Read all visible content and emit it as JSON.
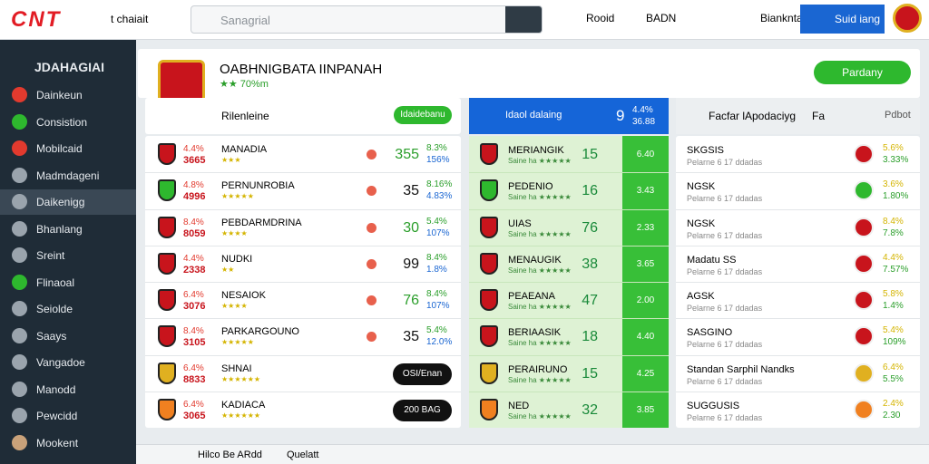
{
  "header": {
    "logo": "CNT",
    "account": "t chaiait",
    "search_placeholder": "Sanagrial",
    "link1": "Rooid",
    "link2": "BADN",
    "link3": "Bianknta",
    "button": "Suid iang"
  },
  "sidebar": {
    "title": "JDAHAGIAI",
    "selected": 4,
    "items": [
      "Dainkeun",
      "Consistion",
      "Mobilcaid",
      "Madmdageni",
      "Daikenigg",
      "Bhanlang",
      "Sreint",
      "Flinaoal",
      "Seiolde",
      "Saays",
      "Vangadoe",
      "Manodd",
      "Pewcidd",
      "Mookent"
    ]
  },
  "panel": {
    "title": "OABHNIGBATA IINPANAH",
    "rating": "★★ 70%m",
    "button": "Pardany",
    "sub_label": "Rilenleine",
    "sub_button": "Idaidebanu"
  },
  "list": {
    "rows": [
      [
        "4.4%",
        "3665",
        "MANADIA",
        "★★★",
        "355",
        "8.3%",
        "156%"
      ],
      [
        "4.8%",
        "4996",
        "PERNUNROBIA",
        "★★★★★",
        "35",
        "8.16%",
        "4.83%"
      ],
      [
        "8.4%",
        "8059",
        "PEBDARMDRINA",
        "★★★★",
        "30",
        "5.4%",
        "107%"
      ],
      [
        "4.4%",
        "2338",
        "NUDKI",
        "★★",
        "99",
        "8.4%",
        "1.8%"
      ],
      [
        "6.4%",
        "3076",
        "NESAIOK",
        "★★★★",
        "76",
        "8.4%",
        "107%"
      ],
      [
        "8.4%",
        "3105",
        "PARKARGOUNO",
        "★★★★★",
        "35",
        "5.4%",
        "12.0%"
      ],
      [
        "6.4%",
        "8833",
        "SHNAI",
        "★★★★★★",
        "OSI/Enan"
      ],
      [
        "6.4%",
        "3065",
        "KADIACA",
        "★★★★★★",
        "200 BAG"
      ]
    ]
  },
  "ranking": {
    "title": "Idaol dalaing",
    "number": "9",
    "stat1": "4.4%",
    "stat2": "36.88",
    "rows": [
      [
        "MERIANGIK",
        "Saine ha ★★★★★",
        "15",
        "6.40"
      ],
      [
        "PEDENIO",
        "Saine ha ★★★★★",
        "16",
        "3.43"
      ],
      [
        "UIAS",
        "Saine ha ★★★★★",
        "76",
        "2.33"
      ],
      [
        "MENAUGIK",
        "Saine ha ★★★★★",
        "38",
        "3.65"
      ],
      [
        "PEAEANA",
        "Saine ha ★★★★★",
        "47",
        "2.00"
      ],
      [
        "BERIAASIK",
        "Saine ha ★★★★★",
        "18",
        "4.40"
      ],
      [
        "PERAIRUNO",
        "Saine ha ★★★★★",
        "15",
        "4.25"
      ],
      [
        "NED",
        "Saine ha ★★★★★",
        "32",
        "3.85"
      ]
    ]
  },
  "factors": {
    "title": "Facfar lApodaciyg",
    "tag": "Fa",
    "action": "Pdbot",
    "rows": [
      [
        "SKGSIS",
        "Pelarne 6 17 ddadas",
        "5.6%",
        "3.33%"
      ],
      [
        "NGSK",
        "Pelarne 6 17 ddadas",
        "3.6%",
        "1.80%"
      ],
      [
        "NGSK",
        "Pelarne 6 17 ddadas",
        "8.4%",
        "7.8%"
      ],
      [
        "Madatu SS",
        "Pelarne 6 17 ddadas",
        "4.4%",
        "7.57%"
      ],
      [
        "AGSK",
        "Pelarne 6 17 ddadas",
        "5.8%",
        "1.4%"
      ],
      [
        "SASGINO",
        "Pelarne 6 17 ddadas",
        "5.4%",
        "109%"
      ],
      [
        "Standan Sarphil Nandks",
        "Pelarne 6 17 ddadas",
        "6.4%",
        "5.5%"
      ],
      [
        "SUGGUSIS",
        "Pelarne 6 17 ddadas",
        "2.4%",
        "2.30"
      ]
    ]
  },
  "footer": {
    "search": "Hilco Be ARdd",
    "link": "Quelatt"
  }
}
